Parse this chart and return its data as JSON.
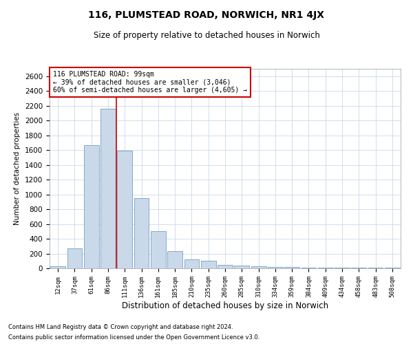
{
  "title": "116, PLUMSTEAD ROAD, NORWICH, NR1 4JX",
  "subtitle": "Size of property relative to detached houses in Norwich",
  "xlabel": "Distribution of detached houses by size in Norwich",
  "ylabel": "Number of detached properties",
  "bar_color": "#c9d9ea",
  "bar_edge_color": "#6090b8",
  "annotation_box_color": "#cc0000",
  "annotation_line_color": "#cc0000",
  "footnote1": "Contains HM Land Registry data © Crown copyright and database right 2024.",
  "footnote2": "Contains public sector information licensed under the Open Government Licence v3.0.",
  "annotation_line1": "116 PLUMSTEAD ROAD: 99sqm",
  "annotation_line2": "← 39% of detached houses are smaller (3,046)",
  "annotation_line3": "60% of semi-detached houses are larger (4,605) →",
  "categories": [
    "12sqm",
    "37sqm",
    "61sqm",
    "86sqm",
    "111sqm",
    "136sqm",
    "161sqm",
    "185sqm",
    "210sqm",
    "235sqm",
    "260sqm",
    "285sqm",
    "310sqm",
    "334sqm",
    "359sqm",
    "384sqm",
    "409sqm",
    "434sqm",
    "458sqm",
    "483sqm",
    "508sqm"
  ],
  "bar_heights": [
    30,
    270,
    1670,
    2160,
    1590,
    950,
    500,
    230,
    120,
    100,
    50,
    40,
    25,
    20,
    15,
    10,
    10,
    10,
    5,
    5,
    5
  ],
  "ylim": [
    0,
    2700
  ],
  "yticks": [
    0,
    200,
    400,
    600,
    800,
    1000,
    1200,
    1400,
    1600,
    1800,
    2000,
    2200,
    2400,
    2600
  ],
  "red_line_x": 3.5,
  "background_color": "#ffffff",
  "grid_color": "#ccd8e8"
}
